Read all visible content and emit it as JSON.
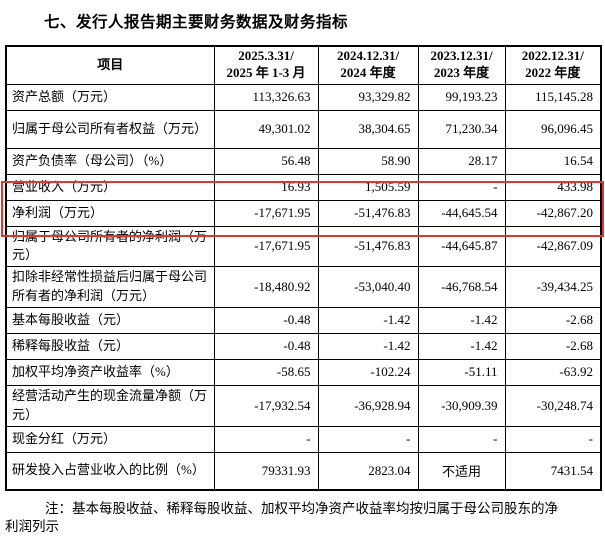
{
  "page": {
    "title": "七、发行人报告期主要财务数据及财务指标"
  },
  "table": {
    "header": {
      "item_label": "项目",
      "periods": [
        {
          "line1": "2025.3.31/",
          "line2": "2025 年 1-3 月"
        },
        {
          "line1": "2024.12.31/",
          "line2": "2024 年度"
        },
        {
          "line1": "2023.12.31/",
          "line2": "2023 年度"
        },
        {
          "line1": "2022.12.31/",
          "line2": "2022 年度"
        }
      ]
    },
    "rows": [
      {
        "label": "资产总额（万元）",
        "values": [
          "113,326.63",
          "93,329.82",
          "99,193.23",
          "115,145.28"
        ],
        "tall": false,
        "highlight": false
      },
      {
        "label": "归属于母公司所有者权益（万元）",
        "values": [
          "49,301.02",
          "38,304.65",
          "71,230.34",
          "96,096.45"
        ],
        "tall": true,
        "highlight": false
      },
      {
        "label": "资产负债率（母公司）（%）",
        "values": [
          "56.48",
          "58.90",
          "28.17",
          "16.54"
        ],
        "tall": false,
        "highlight": false
      },
      {
        "label": "营业收入（万元）",
        "values": [
          "16.93",
          "1,505.59",
          "-",
          "433.98"
        ],
        "tall": false,
        "highlight": true
      },
      {
        "label": "净利润（万元）",
        "values": [
          "-17,671.95",
          "-51,476.83",
          "-44,645.54",
          "-42,867.20"
        ],
        "tall": false,
        "highlight": true
      },
      {
        "label": "归属于母公司所有者的净利润（万元）",
        "values": [
          "-17,671.95",
          "-51,476.83",
          "-44,645.87",
          "-42,867.09"
        ],
        "tall": true,
        "highlight": false
      },
      {
        "label": "扣除非经常性损益后归属于母公司所有者的净利润（万元）",
        "values": [
          "-18,480.92",
          "-53,040.40",
          "-46,768.54",
          "-39,434.25"
        ],
        "tall": true,
        "highlight": false
      },
      {
        "label": "基本每股收益（元）",
        "values": [
          "-0.48",
          "-1.42",
          "-1.42",
          "-2.68"
        ],
        "tall": false,
        "highlight": false
      },
      {
        "label": "稀释每股收益（元）",
        "values": [
          "-0.48",
          "-1.42",
          "-1.42",
          "-2.68"
        ],
        "tall": false,
        "highlight": false
      },
      {
        "label": "加权平均净资产收益率（%）",
        "values": [
          "-58.65",
          "-102.24",
          "-51.11",
          "-63.92"
        ],
        "tall": false,
        "highlight": false
      },
      {
        "label": "经营活动产生的现金流量净额（万元）",
        "values": [
          "-17,932.54",
          "-36,928.94",
          "-30,909.39",
          "-30,248.74"
        ],
        "tall": true,
        "highlight": false
      },
      {
        "label": "现金分红（万元）",
        "values": [
          "-",
          "-",
          "-",
          "-"
        ],
        "tall": false,
        "highlight": false
      },
      {
        "label": "研发投入占营业收入的比例（%）",
        "values": [
          "79331.93",
          "2823.04",
          "不适用",
          "7431.54"
        ],
        "tall": true,
        "highlight": false
      }
    ]
  },
  "note": {
    "text": "注：基本每股收益、稀释每股收益、加权平均净资产收益率均按归属于母公司股东的净利润列示"
  },
  "colors": {
    "highlight_border": "#e0382c",
    "table_border": "#000000",
    "text": "#000000",
    "background": "#ffffff"
  }
}
